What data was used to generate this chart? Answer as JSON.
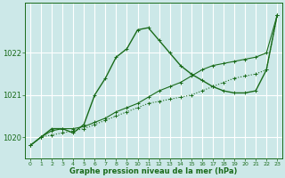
{
  "title": "Graphe pression niveau de la mer (hPa)",
  "background_color": "#cce8e8",
  "grid_color": "#ffffff",
  "line_color": "#1a6b1a",
  "ylim": [
    1019.5,
    1023.2
  ],
  "yticks": [
    1020,
    1021,
    1022
  ],
  "xlim": [
    -0.5,
    23.5
  ],
  "xticks": [
    0,
    1,
    2,
    3,
    4,
    5,
    6,
    7,
    8,
    9,
    10,
    11,
    12,
    13,
    14,
    15,
    16,
    17,
    18,
    19,
    20,
    21,
    22,
    23
  ],
  "series_straight": {
    "x": [
      0,
      1,
      2,
      3,
      4,
      5,
      6,
      7,
      8,
      9,
      10,
      11,
      12,
      13,
      14,
      15,
      16,
      17,
      18,
      19,
      20,
      21,
      22,
      23
    ],
    "y": [
      1019.8,
      1020.0,
      1020.05,
      1020.1,
      1020.15,
      1020.2,
      1020.3,
      1020.4,
      1020.5,
      1020.6,
      1020.7,
      1020.8,
      1020.85,
      1020.9,
      1020.95,
      1021.0,
      1021.1,
      1021.2,
      1021.3,
      1021.4,
      1021.45,
      1021.5,
      1021.6,
      1022.9
    ],
    "linestyle": "dotted",
    "linewidth": 0.8,
    "marker": "+"
  },
  "series_peak": {
    "x": [
      0,
      1,
      2,
      3,
      4,
      5,
      6,
      7,
      8,
      9,
      10,
      11,
      12,
      13,
      14,
      15,
      16,
      17,
      18,
      19,
      20,
      21,
      22,
      23
    ],
    "y": [
      1019.8,
      1020.0,
      1020.2,
      1020.2,
      1020.1,
      1020.3,
      1021.0,
      1021.4,
      1021.9,
      1022.1,
      1022.55,
      1022.6,
      1022.3,
      1022.0,
      1021.7,
      1021.5,
      1021.35,
      1021.2,
      1021.1,
      1021.05,
      1021.05,
      1021.1,
      1021.6,
      1022.9
    ],
    "linestyle": "solid",
    "linewidth": 1.0,
    "marker": "+"
  },
  "series_smooth": {
    "x": [
      0,
      1,
      2,
      3,
      4,
      5,
      6,
      7,
      8,
      9,
      10,
      11,
      12,
      13,
      14,
      15,
      16,
      17,
      18,
      19,
      20,
      21,
      22,
      23
    ],
    "y": [
      1019.8,
      1020.0,
      1020.15,
      1020.2,
      1020.2,
      1020.25,
      1020.35,
      1020.45,
      1020.6,
      1020.7,
      1020.8,
      1020.95,
      1021.1,
      1021.2,
      1021.3,
      1021.45,
      1021.6,
      1021.7,
      1021.75,
      1021.8,
      1021.85,
      1021.9,
      1022.0,
      1022.9
    ],
    "linestyle": "solid",
    "linewidth": 0.8,
    "marker": "+"
  }
}
